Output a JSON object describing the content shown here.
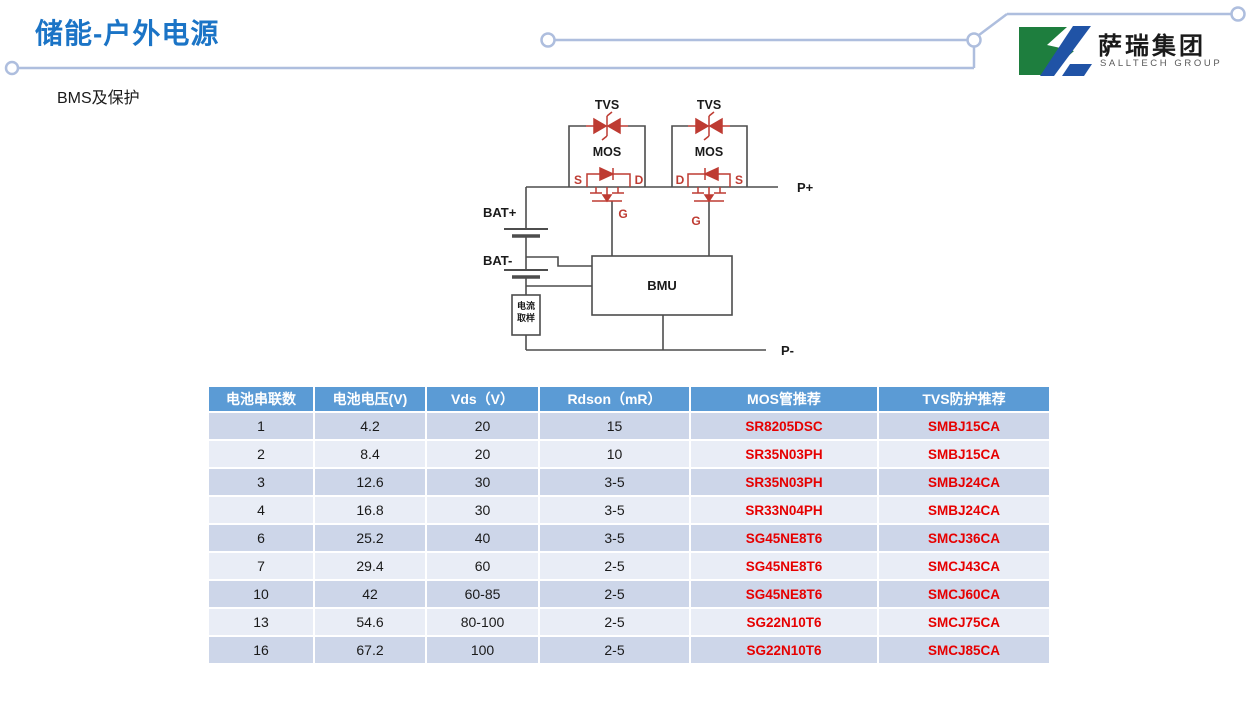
{
  "slide": {
    "title": "储能-户外电源",
    "subtitle": "BMS及保护"
  },
  "logo": {
    "company": "萨瑞集团",
    "group": "SALLTECH GROUP",
    "icon_green": "#1E7E3E",
    "icon_blue": "#2053A6"
  },
  "colors": {
    "title_blue": "#1B74C6",
    "deco_line": "#AEBEDE",
    "wire_gray": "#4d4d4d",
    "symbol_red": "#BE3B32",
    "table_header_bg": "#5B9BD5",
    "table_header_text": "#FFFFFF",
    "table_row_dark": "#CDD6E9",
    "table_row_light": "#E9EDF6",
    "table_part_red": "#E60000"
  },
  "circuit": {
    "tvs_left": "TVS",
    "tvs_right": "TVS",
    "mos_left": "MOS",
    "mos_right": "MOS",
    "s_left": "S",
    "d_left": "D",
    "d_right": "D",
    "s_right": "S",
    "g_left": "G",
    "g_right": "G",
    "bat_plus": "BAT+",
    "bat_minus": "BAT-",
    "current_sense_line1": "电流",
    "current_sense_line2": "取样",
    "bmu": "BMU",
    "p_plus": "P+",
    "p_minus": "P-"
  },
  "table": {
    "headers": [
      "电池串联数",
      "电池电压(V)",
      "Vds（V）",
      "Rdson（mR）",
      "MOS管推荐",
      "TVS防护推荐"
    ],
    "rows": [
      [
        "1",
        "4.2",
        "20",
        "15",
        "SR8205DSC",
        "SMBJ15CA"
      ],
      [
        "2",
        "8.4",
        "20",
        "10",
        "SR35N03PH",
        "SMBJ15CA"
      ],
      [
        "3",
        "12.6",
        "30",
        "3-5",
        "SR35N03PH",
        "SMBJ24CA"
      ],
      [
        "4",
        "16.8",
        "30",
        "3-5",
        "SR33N04PH",
        "SMBJ24CA"
      ],
      [
        "6",
        "25.2",
        "40",
        "3-5",
        "SG45NE8T6",
        "SMCJ36CA"
      ],
      [
        "7",
        "29.4",
        "60",
        "2-5",
        "SG45NE8T6",
        "SMCJ43CA"
      ],
      [
        "10",
        "42",
        "60-85",
        "2-5",
        "SG45NE8T6",
        "SMCJ60CA"
      ],
      [
        "13",
        "54.6",
        "80-100",
        "2-5",
        "SG22N10T6",
        "SMCJ75CA"
      ],
      [
        "16",
        "67.2",
        "100",
        "2-5",
        "SG22N10T6",
        "SMCJ85CA"
      ]
    ]
  }
}
